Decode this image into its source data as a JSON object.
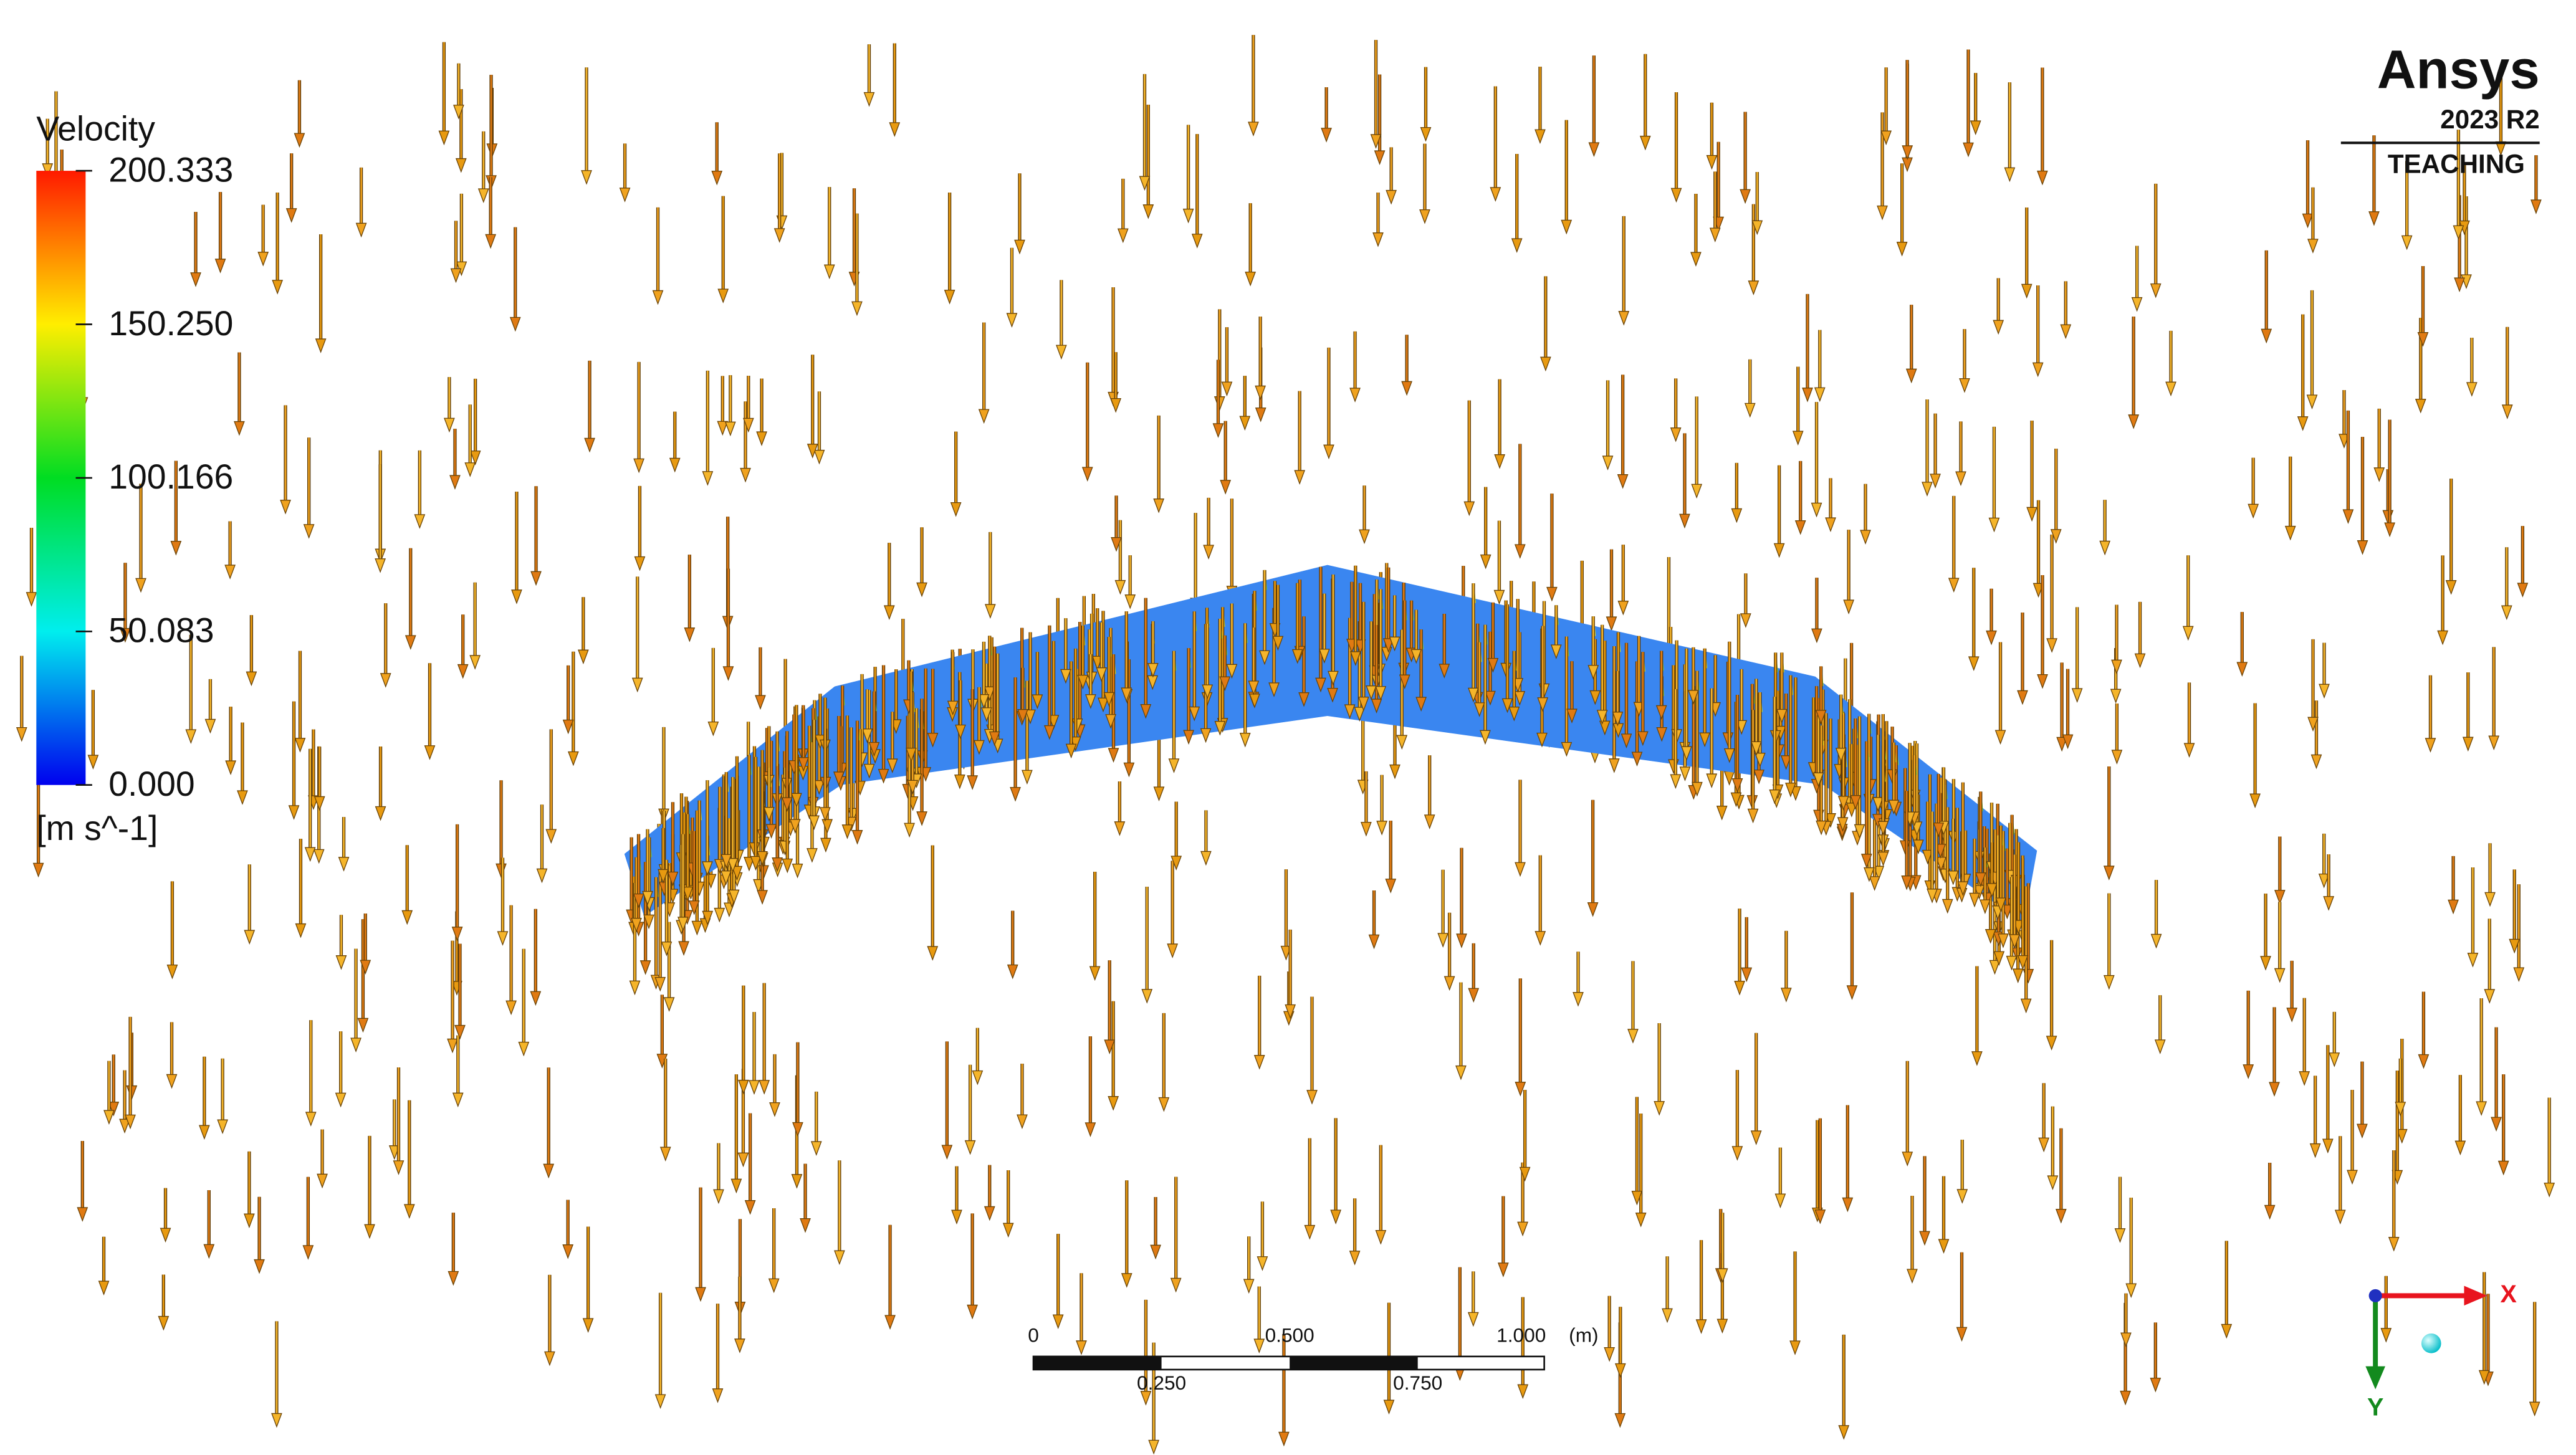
{
  "legend": {
    "title": "Velocity",
    "labels": [
      "200.333",
      "150.250",
      "100.166",
      "50.083",
      "0.000"
    ],
    "unit": "[m s^-1]"
  },
  "logo": {
    "brand": "Ansys",
    "version": "2023 R2",
    "license": "TEACHING"
  },
  "scale_bar": {
    "top_labels": [
      "0",
      "0.500",
      "1.000"
    ],
    "unit": "(m)",
    "bottom_labels": [
      "0.250",
      "0.750"
    ]
  },
  "axes": {
    "x": "X",
    "y": "Y"
  }
}
